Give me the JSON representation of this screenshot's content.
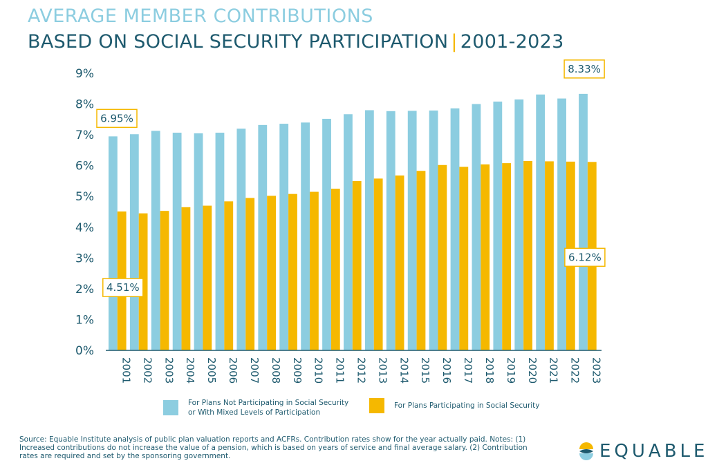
{
  "header": {
    "title_line1": "AVERAGE MEMBER CONTRIBUTIONS",
    "title_line2_main": "BASED ON SOCIAL SECURITY PARTICIPATION",
    "title_separator": "|",
    "title_line2_years": "2001-2023"
  },
  "chart_data": {
    "type": "bar",
    "categories": [
      "2001",
      "2002",
      "2003",
      "2004",
      "2005",
      "2006",
      "2007",
      "2008",
      "2009",
      "2010",
      "2011",
      "2012",
      "2013",
      "2014",
      "2015",
      "2016",
      "2017",
      "2018",
      "2019",
      "2020",
      "2021",
      "2022",
      "2023"
    ],
    "series": [
      {
        "name": "For Plans Not Participating in Social Security or With Mixed Levels of Participation",
        "color": "#8ccde0",
        "values": [
          6.95,
          7.02,
          7.13,
          7.07,
          7.05,
          7.07,
          7.2,
          7.32,
          7.36,
          7.4,
          7.52,
          7.67,
          7.8,
          7.77,
          7.78,
          7.79,
          7.86,
          8.0,
          8.08,
          8.15,
          8.31,
          8.18,
          8.33
        ]
      },
      {
        "name": "For Plans Participating in Social Security",
        "color": "#f5b800",
        "values": [
          4.51,
          4.45,
          4.53,
          4.65,
          4.7,
          4.84,
          4.95,
          5.02,
          5.08,
          5.15,
          5.25,
          5.5,
          5.58,
          5.68,
          5.83,
          6.02,
          5.96,
          6.04,
          6.08,
          6.15,
          6.14,
          6.13,
          6.12
        ]
      }
    ],
    "yticks": [
      "0%",
      "1%",
      "2%",
      "3%",
      "4%",
      "5%",
      "6%",
      "7%",
      "8%",
      "9%"
    ],
    "ylim": [
      0,
      9
    ],
    "annotations": [
      {
        "series": 0,
        "index": 0,
        "text": "6.95%"
      },
      {
        "series": 1,
        "index": 0,
        "text": "4.51%"
      },
      {
        "series": 0,
        "index": 22,
        "text": "8.33%"
      },
      {
        "series": 1,
        "index": 22,
        "text": "6.12%"
      }
    ],
    "legend": "bottom",
    "grid": false
  },
  "legend": {
    "item1_line1": "For Plans Not Participating in Social Security",
    "item1_line2": "or With Mixed Levels of Participation",
    "item2": "For Plans Participating in Social Security"
  },
  "footer": {
    "source": "Source: Equable Institute analysis of public plan valuation reports and ACFRs. Contribution rates show for the year actually paid. Notes: (1) Increased contributions do not increase the value of a pension, which is based on years of service and final average salary. (2) Contribution rates are required and set by the sponsoring government.",
    "logo_text": "EQUABLE"
  },
  "colors": {
    "blue": "#8ccde0",
    "gold": "#f5b800",
    "navy": "#1e5a6e",
    "annotation_border": "#f5b800"
  }
}
